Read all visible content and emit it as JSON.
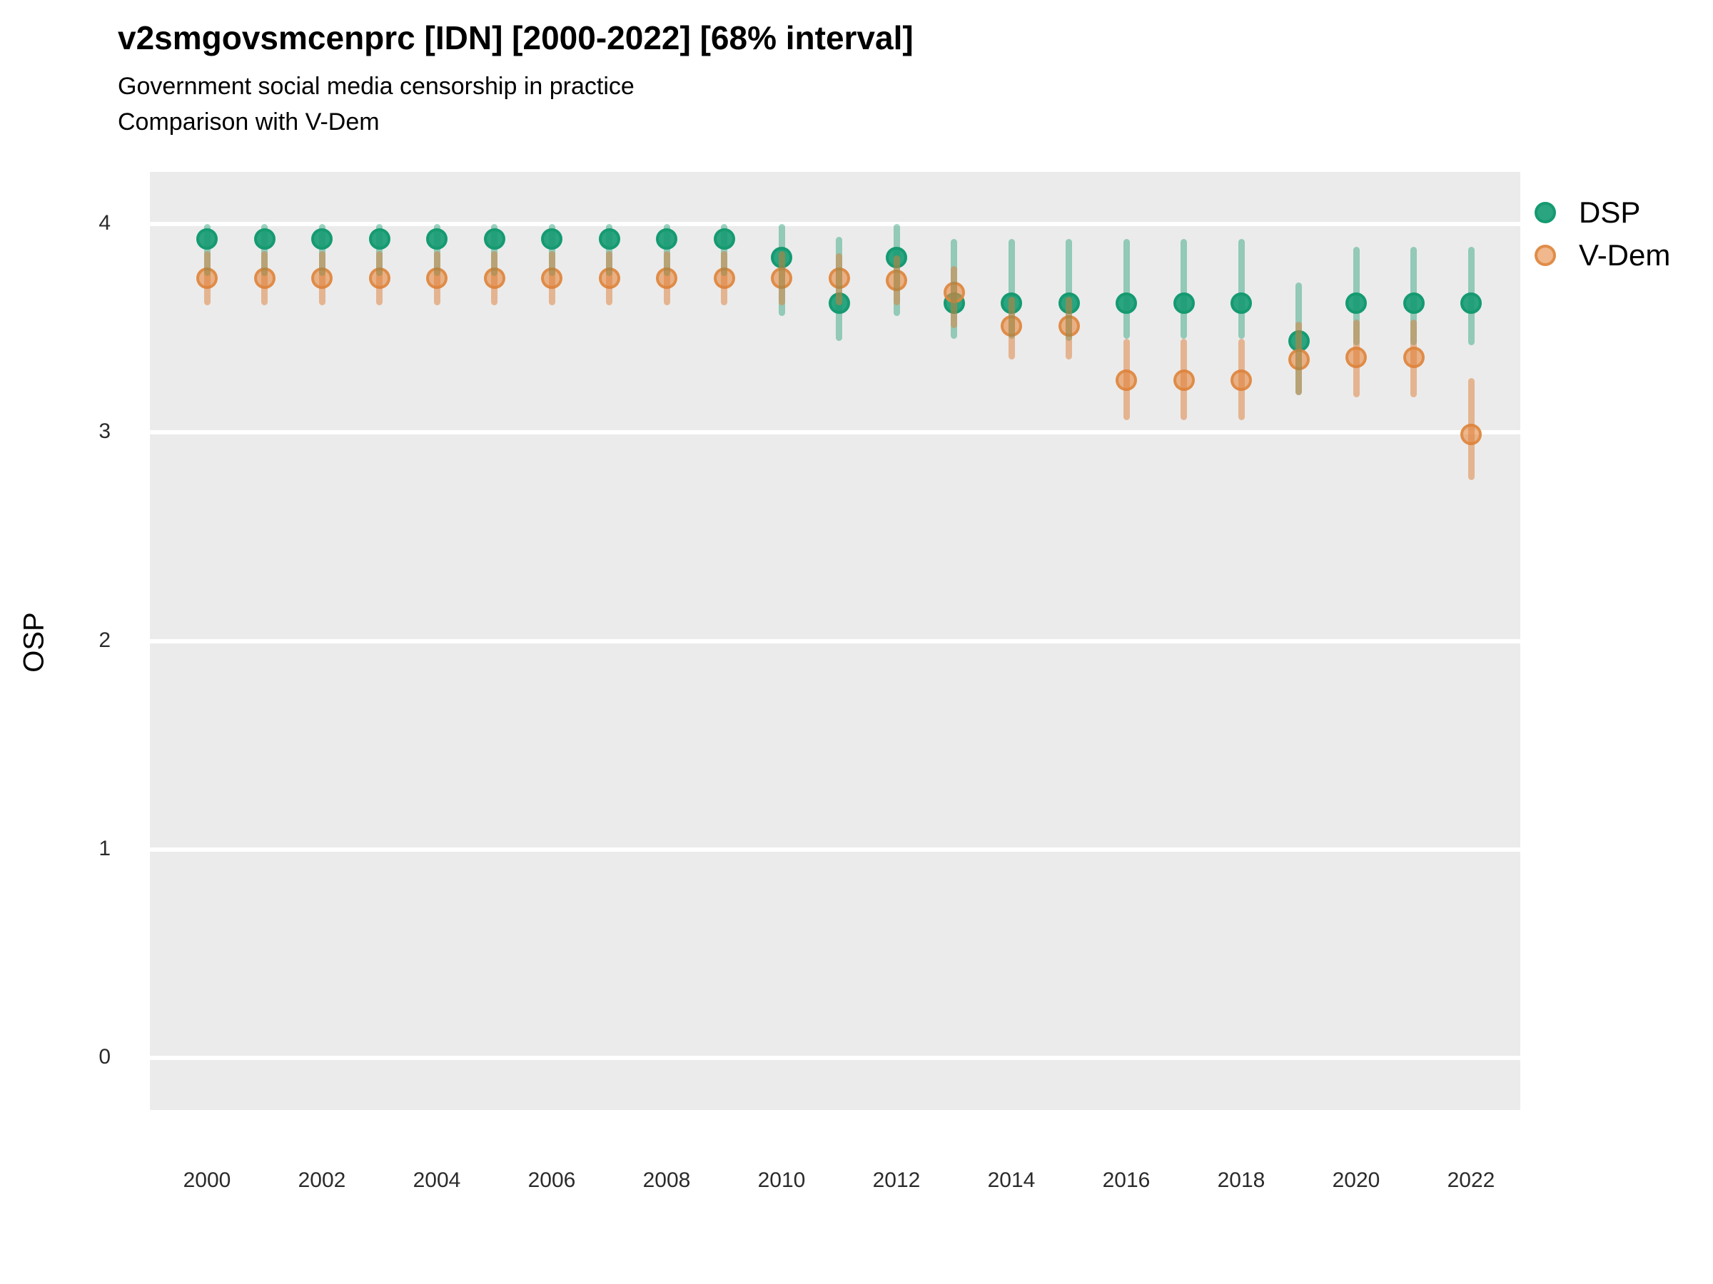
{
  "header": {
    "title": "v2smgovsmcenprc [IDN] [2000-2022] [68% interval]",
    "subtitle_line1": "Government social media censorship in practice",
    "subtitle_line2": "Comparison with V-Dem"
  },
  "y_axis": {
    "title": "OSP",
    "tick_labels": [
      "4",
      "3",
      "2",
      "1",
      "0"
    ],
    "tick_values": [
      4,
      3,
      2,
      1,
      0
    ]
  },
  "x_axis": {
    "tick_labels": [
      "2000",
      "2002",
      "2004",
      "2006",
      "2008",
      "2010",
      "2012",
      "2014",
      "2016",
      "2018",
      "2020",
      "2022"
    ],
    "tick_values": [
      2000,
      2002,
      2004,
      2006,
      2008,
      2010,
      2012,
      2014,
      2016,
      2018,
      2020,
      2022
    ]
  },
  "legend": {
    "items": [
      {
        "label": "DSP",
        "swatch": "dsp"
      },
      {
        "label": "V-Dem",
        "swatch": "vdem"
      }
    ]
  },
  "colors": {
    "panel_background": "#EBEBEB",
    "gridline": "#FFFFFF",
    "dsp_fill": "#2BA480",
    "dsp_stroke": "#159A71",
    "dsp_bar": "rgba(24,154,112,0.42)",
    "vdem_fill": "rgba(231,140,70,0.62)",
    "vdem_stroke": "rgba(222,134,62,0.85)",
    "vdem_bar": "rgba(222,125,55,0.5)"
  },
  "chart_data": {
    "type": "scatter",
    "title": "v2smgovsmcenprc [IDN] [2000-2022] [68% interval]",
    "subtitle": "Government social media censorship in practice — Comparison with V-Dem",
    "xlabel": "",
    "ylabel": "OSP",
    "ylim": [
      -0.25,
      4.25
    ],
    "xlim": [
      1999,
      2023
    ],
    "interval": "68%",
    "grid": "horizontal-major-only",
    "legend_position": "right",
    "x": [
      2000,
      2001,
      2002,
      2003,
      2004,
      2005,
      2006,
      2007,
      2008,
      2009,
      2010,
      2011,
      2012,
      2013,
      2014,
      2015,
      2016,
      2017,
      2018,
      2019,
      2020,
      2021,
      2022
    ],
    "series": [
      {
        "name": "DSP",
        "values": [
          3.93,
          3.93,
          3.93,
          3.93,
          3.93,
          3.93,
          3.93,
          3.93,
          3.93,
          3.93,
          3.84,
          3.62,
          3.84,
          3.62,
          3.62,
          3.62,
          3.62,
          3.62,
          3.62,
          3.44,
          3.62,
          3.62,
          3.62
        ],
        "lower": [
          3.75,
          3.75,
          3.75,
          3.75,
          3.75,
          3.75,
          3.75,
          3.75,
          3.75,
          3.75,
          3.56,
          3.44,
          3.56,
          3.45,
          3.45,
          3.44,
          3.45,
          3.45,
          3.45,
          3.18,
          3.42,
          3.42,
          3.42
        ],
        "upper": [
          4.0,
          4.0,
          4.0,
          4.0,
          4.0,
          4.0,
          4.0,
          4.0,
          4.0,
          4.0,
          4.0,
          3.94,
          4.0,
          3.93,
          3.93,
          3.93,
          3.93,
          3.93,
          3.93,
          3.72,
          3.89,
          3.89,
          3.89
        ]
      },
      {
        "name": "V-Dem",
        "values": [
          3.74,
          3.74,
          3.74,
          3.74,
          3.74,
          3.74,
          3.74,
          3.74,
          3.74,
          3.74,
          3.74,
          3.74,
          3.73,
          3.67,
          3.51,
          3.51,
          3.25,
          3.25,
          3.25,
          3.35,
          3.36,
          3.36,
          2.99
        ],
        "lower": [
          3.61,
          3.61,
          3.61,
          3.61,
          3.61,
          3.61,
          3.61,
          3.61,
          3.61,
          3.61,
          3.61,
          3.61,
          3.61,
          3.5,
          3.35,
          3.35,
          3.06,
          3.06,
          3.06,
          3.18,
          3.17,
          3.17,
          2.77
        ],
        "upper": [
          3.87,
          3.87,
          3.87,
          3.87,
          3.87,
          3.87,
          3.87,
          3.87,
          3.87,
          3.87,
          3.87,
          3.86,
          3.85,
          3.8,
          3.65,
          3.65,
          3.45,
          3.45,
          3.45,
          3.53,
          3.54,
          3.54,
          3.26
        ]
      }
    ]
  }
}
